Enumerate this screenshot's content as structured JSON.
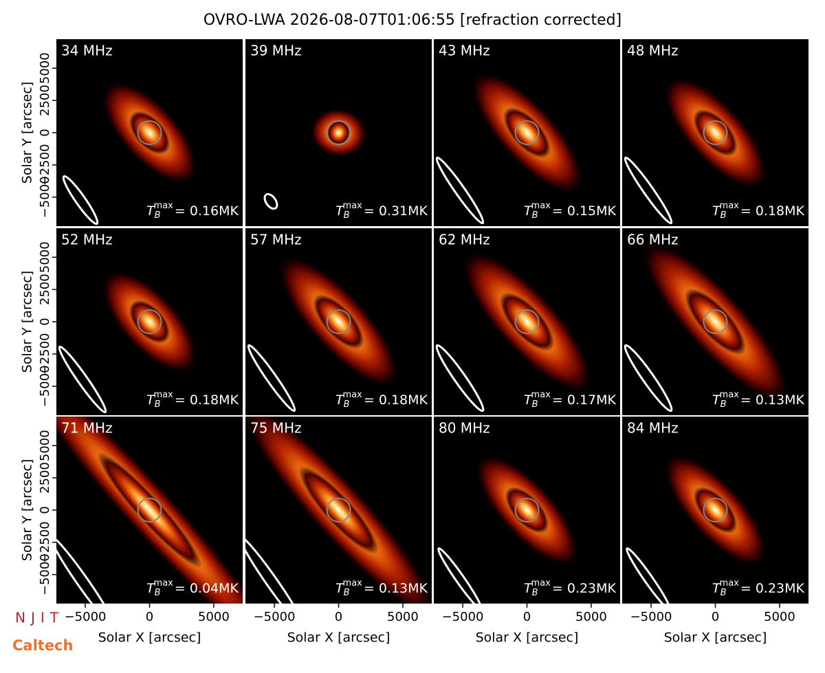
{
  "title": "OVRO-LWA 2026-08-07T01:06:55 [refraction corrected]",
  "tb_symbol": "T",
  "tb_sub": "B",
  "tb_sup": "max",
  "logos": [
    "NJIT",
    "Caltech"
  ],
  "chart_data": [
    {
      "type": "image",
      "title": "34 MHz",
      "tb_max": "= 0.16MK",
      "xlim": [
        -7250,
        7250
      ],
      "ylim": [
        -7250,
        7250
      ],
      "ylabel": "Solar Y [arcsec]",
      "yticks": [
        {
          "value": -5000,
          "label": "−5000"
        },
        {
          "value": -2500,
          "label": "−2500"
        },
        0,
        2500,
        5000
      ]
    },
    {
      "type": "image",
      "title": "39 MHz",
      "tb_max": "= 0.31MK",
      "xlim": [
        -7250,
        7250
      ],
      "ylim": [
        -7250,
        7250
      ]
    },
    {
      "type": "image",
      "title": "43 MHz",
      "tb_max": "= 0.15MK",
      "xlim": [
        -7250,
        7250
      ],
      "ylim": [
        -7250,
        7250
      ]
    },
    {
      "type": "image",
      "title": "48 MHz",
      "tb_max": "= 0.18MK",
      "xlim": [
        -7250,
        7250
      ],
      "ylim": [
        -7250,
        7250
      ]
    },
    {
      "type": "image",
      "title": "52 MHz",
      "tb_max": "= 0.18MK",
      "xlim": [
        -7250,
        7250
      ],
      "ylim": [
        -7250,
        7250
      ],
      "ylabel": "Solar Y [arcsec]",
      "yticks": [
        {
          "value": -5000,
          "label": "−5000"
        },
        {
          "value": -2500,
          "label": "−2500"
        },
        0,
        2500,
        5000
      ]
    },
    {
      "type": "image",
      "title": "57 MHz",
      "tb_max": "= 0.18MK",
      "xlim": [
        -7250,
        7250
      ],
      "ylim": [
        -7250,
        7250
      ]
    },
    {
      "type": "image",
      "title": "62 MHz",
      "tb_max": "= 0.17MK",
      "xlim": [
        -7250,
        7250
      ],
      "ylim": [
        -7250,
        7250
      ]
    },
    {
      "type": "image",
      "title": "66 MHz",
      "tb_max": "= 0.13MK",
      "xlim": [
        -7250,
        7250
      ],
      "ylim": [
        -7250,
        7250
      ]
    },
    {
      "type": "image",
      "title": "71 MHz",
      "tb_max": "= 0.04MK",
      "xlim": [
        -7250,
        7250
      ],
      "ylim": [
        -7250,
        7250
      ],
      "ylabel": "Solar Y [arcsec]",
      "yticks": [
        {
          "value": -5000,
          "label": "−5000"
        },
        {
          "value": -2500,
          "label": "−2500"
        },
        0,
        2500,
        5000
      ],
      "xlabel": "Solar X [arcsec]",
      "xticks": [
        {
          "value": -5000,
          "label": "−5000"
        },
        0,
        5000
      ]
    },
    {
      "type": "image",
      "title": "75 MHz",
      "tb_max": "= 0.13MK",
      "xlim": [
        -7250,
        7250
      ],
      "ylim": [
        -7250,
        7250
      ],
      "xlabel": "Solar X [arcsec]",
      "xticks": [
        {
          "value": -5000,
          "label": "−5000"
        },
        0,
        5000
      ]
    },
    {
      "type": "image",
      "title": "80 MHz",
      "tb_max": "= 0.23MK",
      "xlim": [
        -7250,
        7250
      ],
      "ylim": [
        -7250,
        7250
      ],
      "xlabel": "Solar X [arcsec]",
      "xticks": [
        {
          "value": -5000,
          "label": "−5000"
        },
        0,
        5000
      ]
    },
    {
      "type": "image",
      "title": "84 MHz",
      "tb_max": "= 0.23MK",
      "xlim": [
        -7250,
        7250
      ],
      "ylim": [
        -7250,
        7250
      ],
      "xlabel": "Solar X [arcsec]",
      "xticks": [
        {
          "value": -5000,
          "label": "−5000"
        },
        0,
        5000
      ]
    }
  ]
}
